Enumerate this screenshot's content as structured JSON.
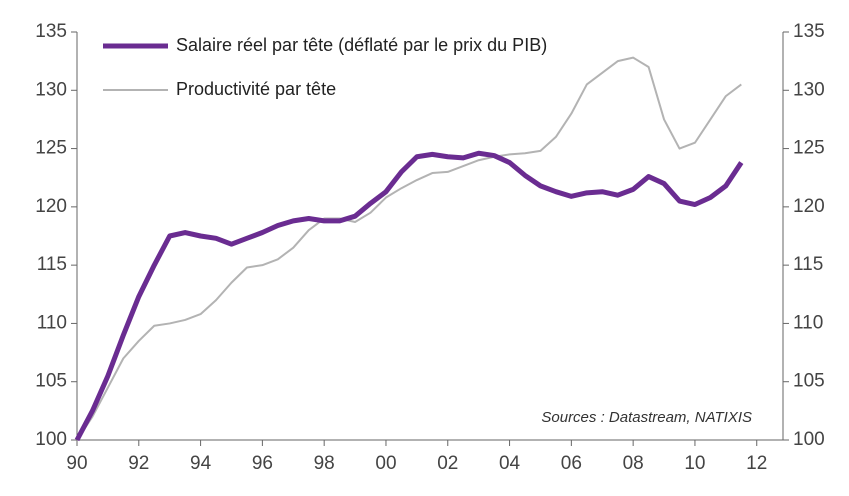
{
  "chart_data": {
    "type": "line",
    "annotation": "Sources : Datastream, NATIXIS",
    "x": [
      1990,
      1990.5,
      1991,
      1991.5,
      1992,
      1992.5,
      1993,
      1993.5,
      1994,
      1994.5,
      1995,
      1995.5,
      1996,
      1996.5,
      1997,
      1997.5,
      1998,
      1998.5,
      1999,
      1999.5,
      2000,
      2000.5,
      2001,
      2001.5,
      2002,
      2002.5,
      2003,
      2003.5,
      2004,
      2004.5,
      2005,
      2005.5,
      2006,
      2006.5,
      2007,
      2007.5,
      2008,
      2008.5,
      2009,
      2009.5,
      2010,
      2010.5,
      2011,
      2011.5
    ],
    "series": [
      {
        "name": "Salaire réel par tête (déflaté par le prix du PIB)",
        "color": "#6a2c91",
        "width": 5,
        "values": [
          100,
          102.5,
          105.5,
          109,
          112.3,
          115,
          117.5,
          117.8,
          117.5,
          117.3,
          116.8,
          117.3,
          117.8,
          118.4,
          118.8,
          119,
          118.8,
          118.8,
          119.2,
          120.3,
          121.3,
          123,
          124.3,
          124.5,
          124.3,
          124.2,
          124.6,
          124.4,
          123.8,
          122.7,
          121.8,
          121.3,
          120.9,
          121.2,
          121.3,
          121,
          121.5,
          122.6,
          122,
          120.5,
          120.2,
          120.8,
          121.8,
          123.8
        ]
      },
      {
        "name": "Productivité par tête",
        "color": "#b3b3b3",
        "width": 2,
        "values": [
          100,
          102,
          104.5,
          107,
          108.5,
          109.8,
          110,
          110.3,
          110.8,
          112,
          113.5,
          114.8,
          115,
          115.5,
          116.5,
          118,
          119,
          119,
          118.7,
          119.5,
          120.8,
          121.6,
          122.3,
          122.9,
          123,
          123.5,
          124,
          124.3,
          124.5,
          124.6,
          124.8,
          126,
          128,
          130.5,
          131.5,
          132.5,
          132.8,
          132,
          127.5,
          125,
          125.5,
          127.5,
          129.5,
          130.5
        ]
      }
    ],
    "xlim": [
      1990,
      2012.85
    ],
    "xticks": [
      {
        "value": 1990,
        "label": "90"
      },
      {
        "value": 1992,
        "label": "92"
      },
      {
        "value": 1994,
        "label": "94"
      },
      {
        "value": 1996,
        "label": "96"
      },
      {
        "value": 1998,
        "label": "98"
      },
      {
        "value": 2000,
        "label": "00"
      },
      {
        "value": 2002,
        "label": "02"
      },
      {
        "value": 2004,
        "label": "04"
      },
      {
        "value": 2006,
        "label": "06"
      },
      {
        "value": 2008,
        "label": "08"
      },
      {
        "value": 2010,
        "label": "10"
      },
      {
        "value": 2012,
        "label": "12"
      }
    ],
    "ylim": [
      100,
      135
    ],
    "yticks": [
      100,
      105,
      110,
      115,
      120,
      125,
      130,
      135
    ],
    "y2lim": [
      100,
      135
    ],
    "y2ticks": [
      100,
      105,
      110,
      115,
      120,
      125,
      130,
      135
    ]
  }
}
